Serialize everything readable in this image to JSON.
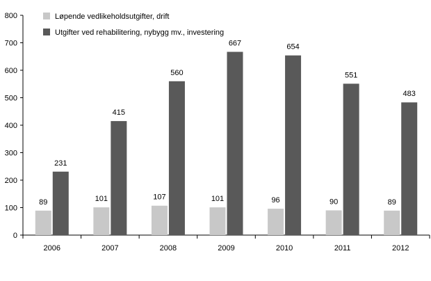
{
  "chart_data": {
    "type": "bar",
    "categories": [
      "2006",
      "2007",
      "2008",
      "2009",
      "2010",
      "2011",
      "2012"
    ],
    "series": [
      {
        "name": "Løpende vedlikeholdsutgifter, drift",
        "values": [
          89,
          101,
          107,
          101,
          96,
          90,
          89
        ],
        "color": "#c8c8c8"
      },
      {
        "name": "Utgifter ved rehabilitering, nybygg mv., investering",
        "values": [
          231,
          415,
          560,
          667,
          654,
          551,
          483
        ],
        "color": "#595959"
      }
    ],
    "ylim": [
      0,
      800
    ],
    "yticks": [
      "0",
      "100",
      "200",
      "300",
      "400",
      "500",
      "600",
      "700",
      "800"
    ],
    "grid": false,
    "legend_position": "top-left",
    "title": "",
    "xlabel": "",
    "ylabel": ""
  }
}
